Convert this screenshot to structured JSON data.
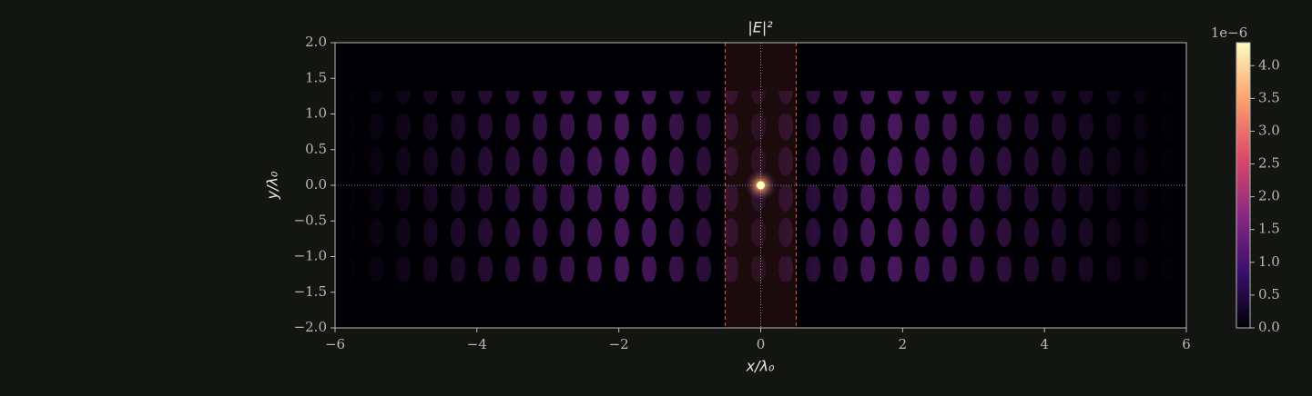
{
  "chart_data": {
    "type": "image",
    "title": "|E|²",
    "xlabel": "x/λ₀",
    "ylabel": "y/λ₀",
    "xlim": [
      -6,
      6
    ],
    "ylim": [
      -2,
      2
    ],
    "xticks": [
      {
        "value": -6,
        "label": "−6"
      },
      {
        "value": -4,
        "label": "−4"
      },
      {
        "value": -2,
        "label": "−2"
      },
      0,
      2,
      4,
      6
    ],
    "yticks": [
      {
        "value": -2,
        "label": "−2.0"
      },
      {
        "value": -1.5,
        "label": "−1.5"
      },
      {
        "value": -1,
        "label": "−1.0"
      },
      {
        "value": -0.5,
        "label": "−0.5"
      },
      {
        "value": 0,
        "label": "0.0"
      },
      0.5,
      {
        "value": 1,
        "label": "1.0"
      },
      1.5,
      {
        "value": 2,
        "label": "2.0"
      }
    ],
    "span": [
      -0.5,
      0.5
    ],
    "span_color": "#e05a4a",
    "marker": {
      "x": 0,
      "y": 0
    },
    "colorbar": {
      "lim": [
        0,
        4.35
      ],
      "ticks": [
        {
          "value": 0,
          "label": "0.0"
        },
        0.5,
        {
          "value": 1,
          "label": "1.0"
        },
        1.5,
        {
          "value": 2,
          "label": "2.0"
        },
        2.5,
        {
          "value": 3,
          "label": "3.0"
        },
        3.5,
        {
          "value": 4,
          "label": "4.0"
        }
      ],
      "offset_label": "1e−6"
    }
  }
}
